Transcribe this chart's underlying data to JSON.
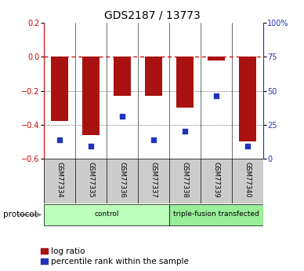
{
  "title": "GDS2187 / 13773",
  "samples": [
    "GSM77334",
    "GSM77335",
    "GSM77336",
    "GSM77337",
    "GSM77338",
    "GSM77339",
    "GSM77340"
  ],
  "log_ratio": [
    -0.38,
    -0.46,
    -0.23,
    -0.23,
    -0.3,
    -0.02,
    -0.5
  ],
  "percentile_rank": [
    14,
    9,
    31,
    14,
    20,
    46,
    9
  ],
  "bar_color": "#aa1111",
  "dot_color": "#2233bb",
  "ylim_left": [
    -0.6,
    0.2
  ],
  "ylim_right": [
    0,
    100
  ],
  "yticks_left": [
    0.2,
    0.0,
    -0.2,
    -0.4,
    -0.6
  ],
  "yticks_right": [
    100,
    75,
    50,
    25,
    0
  ],
  "groups": [
    {
      "label": "control",
      "start": 0,
      "end": 4,
      "color": "#bbffbb"
    },
    {
      "label": "triple-fusion transfected",
      "start": 4,
      "end": 7,
      "color": "#99ee99"
    }
  ],
  "protocol_label": "protocol",
  "bg_color": "#ffffff",
  "sample_label_bg": "#cccccc",
  "zero_line_color": "#cc0000",
  "grid_color": "#333333",
  "title_fontsize": 10,
  "tick_fontsize": 7,
  "axis_label_color_left": "#cc0000",
  "axis_label_color_right": "#2233bb",
  "bar_width": 0.55,
  "legend_fontsize": 7.5
}
